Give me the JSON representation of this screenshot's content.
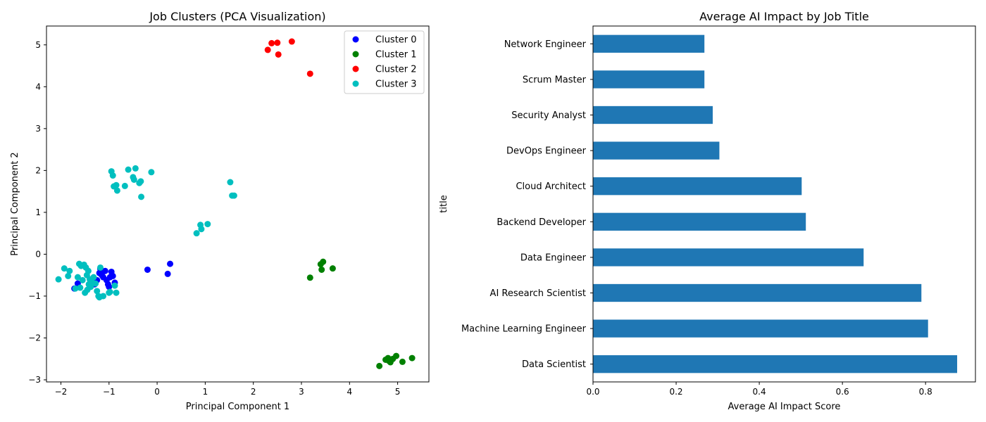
{
  "chart_data": [
    {
      "type": "scatter",
      "title": "Job Clusters (PCA Visualization)",
      "xlabel": "Principal Component 1",
      "ylabel": "Principal Component 2",
      "xlim": [
        -2.3,
        5.65
      ],
      "ylim": [
        -3.05,
        5.45
      ],
      "xticks": [
        -2,
        -1,
        0,
        1,
        2,
        3,
        4,
        5
      ],
      "yticks": [
        -3,
        -2,
        -1,
        0,
        1,
        2,
        3,
        4,
        5
      ],
      "grid": false,
      "legend_position": "top-right",
      "series": [
        {
          "name": "Cluster 0",
          "color": "#0000ff",
          "points": [
            [
              -1.72,
              -0.82
            ],
            [
              -1.65,
              -0.7
            ],
            [
              -1.25,
              -0.62
            ],
            [
              -1.2,
              -0.45
            ],
            [
              -1.15,
              -0.5
            ],
            [
              -1.12,
              -0.55
            ],
            [
              -1.08,
              -0.4
            ],
            [
              -1.05,
              -0.62
            ],
            [
              -1.02,
              -0.72
            ],
            [
              -1.0,
              -0.78
            ],
            [
              -0.98,
              -0.55
            ],
            [
              -0.95,
              -0.42
            ],
            [
              -0.92,
              -0.52
            ],
            [
              -0.88,
              -0.68
            ],
            [
              -1.3,
              -0.72
            ],
            [
              -1.18,
              -0.35
            ],
            [
              -0.2,
              -0.37
            ],
            [
              0.22,
              -0.47
            ],
            [
              0.27,
              -0.23
            ]
          ]
        },
        {
          "name": "Cluster 1",
          "color": "#008000",
          "points": [
            [
              3.18,
              -0.56
            ],
            [
              3.4,
              -0.24
            ],
            [
              3.42,
              -0.37
            ],
            [
              3.45,
              -0.18
            ],
            [
              3.65,
              -0.34
            ],
            [
              4.62,
              -2.67
            ],
            [
              4.75,
              -2.52
            ],
            [
              4.8,
              -2.48
            ],
            [
              4.82,
              -2.55
            ],
            [
              4.85,
              -2.58
            ],
            [
              4.9,
              -2.5
            ],
            [
              4.97,
              -2.43
            ],
            [
              5.1,
              -2.57
            ],
            [
              5.3,
              -2.48
            ]
          ]
        },
        {
          "name": "Cluster 2",
          "color": "#ff0000",
          "points": [
            [
              2.3,
              4.88
            ],
            [
              2.38,
              5.04
            ],
            [
              2.5,
              5.05
            ],
            [
              2.52,
              4.77
            ],
            [
              2.8,
              5.08
            ],
            [
              3.18,
              4.31
            ]
          ]
        },
        {
          "name": "Cluster 3",
          "color": "#00bfbf",
          "points": [
            [
              -2.05,
              -0.6
            ],
            [
              -1.93,
              -0.34
            ],
            [
              -1.85,
              -0.52
            ],
            [
              -1.82,
              -0.4
            ],
            [
              -1.7,
              -0.82
            ],
            [
              -1.65,
              -0.55
            ],
            [
              -1.62,
              -0.23
            ],
            [
              -1.6,
              -0.8
            ],
            [
              -1.58,
              -0.28
            ],
            [
              -1.55,
              -0.62
            ],
            [
              -1.52,
              -0.25
            ],
            [
              -1.5,
              -0.92
            ],
            [
              -1.48,
              -0.32
            ],
            [
              -1.46,
              -0.5
            ],
            [
              -1.45,
              -0.85
            ],
            [
              -1.43,
              -0.4
            ],
            [
              -1.42,
              -0.72
            ],
            [
              -1.4,
              -0.6
            ],
            [
              -1.38,
              -0.78
            ],
            [
              -1.35,
              -0.68
            ],
            [
              -1.32,
              -0.55
            ],
            [
              -1.28,
              -0.7
            ],
            [
              -1.25,
              -0.88
            ],
            [
              -1.22,
              -1.0
            ],
            [
              -1.2,
              -1.03
            ],
            [
              -1.18,
              -0.32
            ],
            [
              -1.12,
              -1.0
            ],
            [
              -1.0,
              -0.92
            ],
            [
              -0.98,
              -0.9
            ],
            [
              -0.85,
              -0.92
            ],
            [
              -0.88,
              -0.75
            ],
            [
              -0.95,
              1.98
            ],
            [
              -0.92,
              1.88
            ],
            [
              -0.9,
              1.62
            ],
            [
              -0.85,
              1.65
            ],
            [
              -0.83,
              1.52
            ],
            [
              -0.67,
              1.63
            ],
            [
              -0.6,
              2.02
            ],
            [
              -0.5,
              1.84
            ],
            [
              -0.48,
              1.78
            ],
            [
              -0.45,
              2.05
            ],
            [
              -0.37,
              1.7
            ],
            [
              -0.34,
              1.74
            ],
            [
              -0.33,
              1.37
            ],
            [
              -0.12,
              1.96
            ],
            [
              0.82,
              0.5
            ],
            [
              0.9,
              0.7
            ],
            [
              0.92,
              0.6
            ],
            [
              1.05,
              0.72
            ],
            [
              1.52,
              1.72
            ],
            [
              1.56,
              1.4
            ],
            [
              1.6,
              1.4
            ]
          ]
        }
      ]
    },
    {
      "type": "bar",
      "orientation": "horizontal",
      "title": "Average AI Impact by Job Title",
      "xlabel": "Average AI Impact Score",
      "ylabel": "title",
      "xlim": [
        0,
        0.92
      ],
      "xticks": [
        0.0,
        0.2,
        0.4,
        0.6,
        0.8
      ],
      "color": "#1f77b4",
      "grid": false,
      "categories": [
        "Data Scientist",
        "Machine Learning Engineer",
        "AI Research Scientist",
        "Data Engineer",
        "Backend Developer",
        "Cloud Architect",
        "DevOps Engineer",
        "Security Analyst",
        "Scrum Master",
        "Network Engineer"
      ],
      "values": [
        0.876,
        0.806,
        0.79,
        0.651,
        0.512,
        0.502,
        0.304,
        0.288,
        0.268,
        0.268
      ]
    }
  ]
}
